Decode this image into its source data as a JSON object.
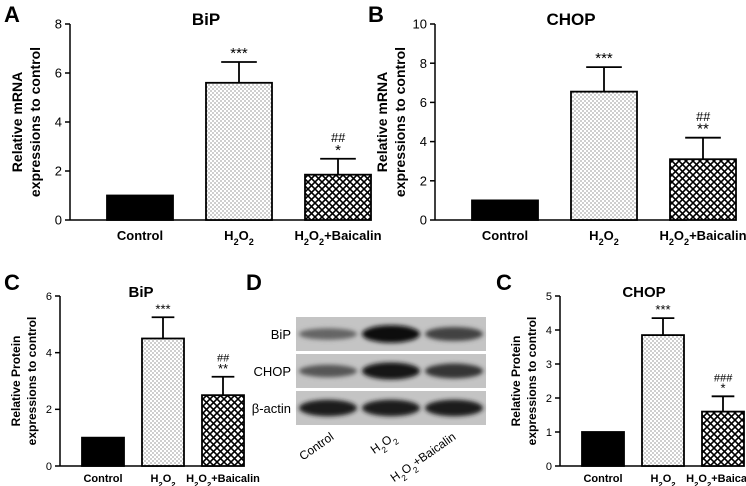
{
  "panels": {
    "A": "A",
    "B": "B",
    "C1": "C",
    "D": "D",
    "C2": "C"
  },
  "chart_data": [
    {
      "id": "A",
      "type": "bar",
      "title": "BiP",
      "ylabel": "Relative mRNA\nexpressions to control",
      "ylim": [
        0,
        8
      ],
      "yticks": [
        "0",
        "2",
        "4",
        "6",
        "8"
      ],
      "categories": [
        "Control",
        "H2O2",
        "H2O2+Baicalin"
      ],
      "values": [
        1.0,
        5.6,
        1.85
      ],
      "errors": [
        0.0,
        0.85,
        0.65
      ],
      "sig_star": [
        "",
        "***",
        "*"
      ],
      "sig_hash": [
        "",
        "",
        "##"
      ],
      "fills": [
        "solid",
        "dots",
        "cross"
      ]
    },
    {
      "id": "B",
      "type": "bar",
      "title": "CHOP",
      "ylabel": "Relative mRNA\nexpressions to control",
      "ylim": [
        0,
        10
      ],
      "yticks": [
        "0",
        "2",
        "4",
        "6",
        "8",
        "10"
      ],
      "categories": [
        "Control",
        "H2O2",
        "H2O2+Baicalin"
      ],
      "values": [
        1.0,
        6.55,
        3.1
      ],
      "errors": [
        0.0,
        1.25,
        1.1
      ],
      "sig_star": [
        "",
        "***",
        "**"
      ],
      "sig_hash": [
        "",
        "",
        "##"
      ],
      "fills": [
        "solid",
        "dots",
        "cross"
      ]
    },
    {
      "id": "C1",
      "type": "bar",
      "title": "BiP",
      "ylabel": "Relative Protein\nexpressions to control",
      "ylim": [
        0,
        6
      ],
      "yticks": [
        "0",
        "2",
        "4",
        "6"
      ],
      "categories": [
        "Control",
        "H2O2",
        "H2O2+Baicalin"
      ],
      "values": [
        1.0,
        4.5,
        2.5
      ],
      "errors": [
        0.0,
        0.75,
        0.65
      ],
      "sig_star": [
        "",
        "***",
        "**"
      ],
      "sig_hash": [
        "",
        "",
        "##"
      ],
      "fills": [
        "solid",
        "dots",
        "cross"
      ]
    },
    {
      "id": "C2",
      "type": "bar",
      "title": "CHOP",
      "ylabel": "Relative Protein\nexpressions to control",
      "ylim": [
        0,
        5
      ],
      "yticks": [
        "0",
        "1",
        "2",
        "3",
        "4",
        "5"
      ],
      "categories": [
        "Control",
        "H2O2",
        "H2O2+Baicalin"
      ],
      "values": [
        1.0,
        3.85,
        1.6
      ],
      "errors": [
        0.0,
        0.5,
        0.45
      ],
      "sig_star": [
        "",
        "***",
        "*"
      ],
      "sig_hash": [
        "",
        "",
        "###"
      ],
      "fills": [
        "solid",
        "dots",
        "cross"
      ]
    }
  ],
  "blot": {
    "rows": [
      "BiP",
      "CHOP",
      "β-actin"
    ],
    "lanes": [
      "Control",
      "H2O2",
      "H2O2+Baicalin"
    ],
    "intensity": [
      [
        0.35,
        0.95,
        0.6
      ],
      [
        0.45,
        0.9,
        0.7
      ],
      [
        0.85,
        0.85,
        0.85
      ]
    ]
  }
}
